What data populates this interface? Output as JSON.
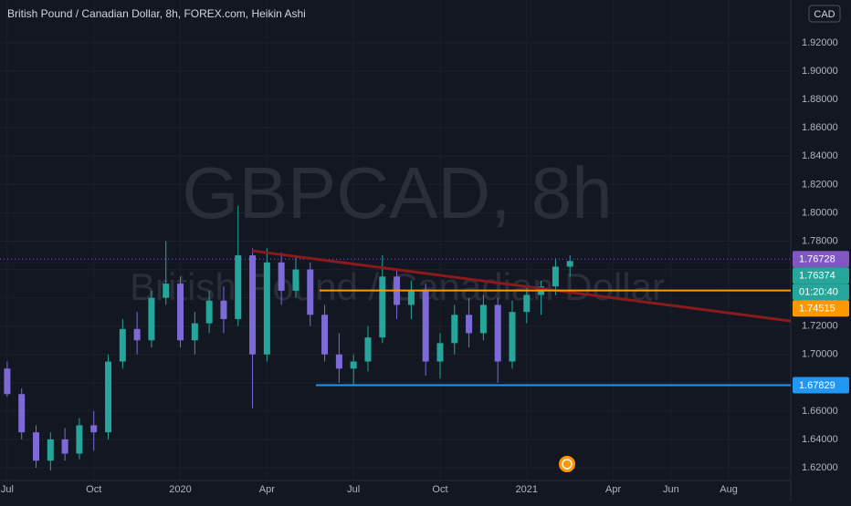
{
  "chart_data": {
    "type": "candlestick",
    "title": "British Pound / Canadian Dollar, 8h, FOREX.com, Heikin Ashi",
    "watermark_symbol": "GBPCAD, 8h",
    "watermark_name": "British Pound / Canadian Dollar",
    "currency": "CAD",
    "countdown": "01:20:40",
    "up_color": "#26a69a",
    "down_color": "#7e6ad6",
    "grid": true,
    "xlim": [
      -0.25,
      27.15
    ],
    "ylim": [
      1.611,
      1.9503
    ],
    "xticks": [
      {
        "value": 0,
        "label": "Jul"
      },
      {
        "value": 3,
        "label": "Oct"
      },
      {
        "value": 6,
        "label": "2020"
      },
      {
        "value": 9,
        "label": "Apr"
      },
      {
        "value": 12,
        "label": "Jul"
      },
      {
        "value": 15,
        "label": "Oct"
      },
      {
        "value": 18,
        "label": "2021"
      },
      {
        "value": 21,
        "label": "Apr"
      },
      {
        "value": 23,
        "label": "Jun"
      },
      {
        "value": 25,
        "label": "Aug"
      }
    ],
    "yticks": [
      {
        "value": 1.62,
        "label": "1.62000"
      },
      {
        "value": 1.64,
        "label": "1.64000"
      },
      {
        "value": 1.66,
        "label": "1.66000"
      },
      {
        "value": 1.68,
        "label": "1.68000"
      },
      {
        "value": 1.7,
        "label": "1.70000"
      },
      {
        "value": 1.72,
        "label": "1.72000"
      },
      {
        "value": 1.74,
        "label": "1.74000"
      },
      {
        "value": 1.76,
        "label": "1.76000"
      },
      {
        "value": 1.78,
        "label": "1.78000"
      },
      {
        "value": 1.8,
        "label": "1.80000"
      },
      {
        "value": 1.82,
        "label": "1.82000"
      },
      {
        "value": 1.84,
        "label": "1.84000"
      },
      {
        "value": 1.86,
        "label": "1.86000"
      },
      {
        "value": 1.88,
        "label": "1.88000"
      },
      {
        "value": 1.9,
        "label": "1.90000"
      },
      {
        "value": 1.92,
        "label": "1.92000"
      }
    ],
    "x": [
      0,
      0.5,
      1,
      1.5,
      2,
      2.5,
      3,
      3.5,
      4,
      4.5,
      5,
      5.5,
      6,
      6.5,
      7,
      7.5,
      8,
      8.5,
      9,
      9.5,
      10,
      10.5,
      11,
      11.5,
      12,
      12.5,
      13,
      13.5,
      14,
      14.5,
      15,
      15.5,
      16,
      16.5,
      17,
      17.5,
      18,
      18.5,
      19,
      19.5
    ],
    "open": [
      1.69,
      1.672,
      1.645,
      1.625,
      1.64,
      1.63,
      1.65,
      1.645,
      1.695,
      1.718,
      1.71,
      1.74,
      1.75,
      1.71,
      1.722,
      1.738,
      1.725,
      1.77,
      1.7,
      1.765,
      1.745,
      1.76,
      1.728,
      1.7,
      1.69,
      1.695,
      1.712,
      1.755,
      1.735,
      1.745,
      1.695,
      1.708,
      1.728,
      1.715,
      1.735,
      1.695,
      1.73,
      1.742,
      1.748,
      1.762
    ],
    "high": [
      1.695,
      1.676,
      1.65,
      1.645,
      1.648,
      1.655,
      1.66,
      1.7,
      1.725,
      1.73,
      1.745,
      1.78,
      1.755,
      1.73,
      1.745,
      1.748,
      1.805,
      1.775,
      1.775,
      1.772,
      1.77,
      1.765,
      1.735,
      1.715,
      1.7,
      1.72,
      1.77,
      1.76,
      1.752,
      1.75,
      1.715,
      1.735,
      1.74,
      1.742,
      1.74,
      1.738,
      1.748,
      1.752,
      1.768,
      1.77
    ],
    "low": [
      1.67,
      1.64,
      1.62,
      1.618,
      1.625,
      1.626,
      1.632,
      1.64,
      1.69,
      1.7,
      1.705,
      1.735,
      1.705,
      1.7,
      1.715,
      1.715,
      1.72,
      1.662,
      1.695,
      1.735,
      1.74,
      1.72,
      1.695,
      1.68,
      1.678,
      1.688,
      1.708,
      1.725,
      1.725,
      1.685,
      1.683,
      1.7,
      1.705,
      1.71,
      1.68,
      1.69,
      1.722,
      1.728,
      1.742,
      1.755
    ],
    "close": [
      1.672,
      1.645,
      1.625,
      1.64,
      1.63,
      1.65,
      1.645,
      1.695,
      1.718,
      1.71,
      1.74,
      1.75,
      1.71,
      1.722,
      1.738,
      1.725,
      1.77,
      1.7,
      1.765,
      1.745,
      1.76,
      1.728,
      1.7,
      1.69,
      1.695,
      1.712,
      1.755,
      1.735,
      1.745,
      1.695,
      1.708,
      1.728,
      1.715,
      1.735,
      1.695,
      1.73,
      1.742,
      1.748,
      1.762,
      1.766
    ],
    "trendline": {
      "x": [
        8.48,
        27.15
      ],
      "y": [
        1.7732,
        1.7236
      ],
      "color": "#8b1a1a"
    },
    "hlines": [
      {
        "value": 1.74515,
        "x_start": 10.82,
        "color": "#ff9800"
      },
      {
        "value": 1.67829,
        "x_start": 10.7,
        "color": "#2196f3"
      }
    ],
    "current_price": 1.76728,
    "price_labels": [
      {
        "value": 1.76728,
        "color": "#7e57c2"
      },
      {
        "value": 1.76374,
        "color": "#26a69a"
      },
      {
        "value": 1.74515,
        "color": "#ff9800"
      },
      {
        "value": 1.67829,
        "color": "#2196f3"
      }
    ]
  }
}
